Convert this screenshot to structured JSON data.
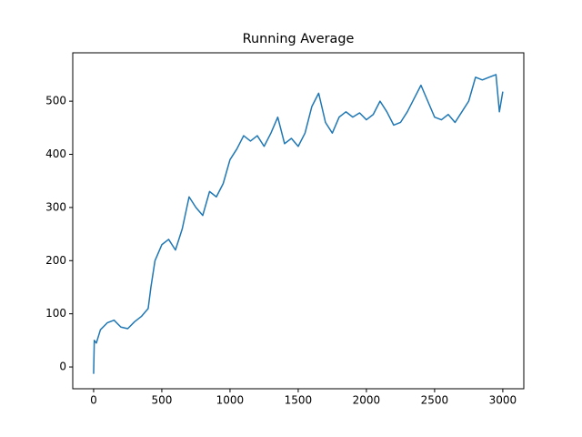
{
  "chart_data": {
    "type": "line",
    "title": "Running Average",
    "x": [
      0,
      5,
      20,
      50,
      100,
      150,
      200,
      250,
      300,
      350,
      400,
      420,
      450,
      500,
      550,
      600,
      650,
      700,
      750,
      800,
      850,
      900,
      950,
      1000,
      1050,
      1100,
      1150,
      1200,
      1250,
      1300,
      1350,
      1400,
      1450,
      1500,
      1550,
      1600,
      1650,
      1700,
      1750,
      1800,
      1850,
      1900,
      1950,
      2000,
      2050,
      2100,
      2150,
      2200,
      2250,
      2300,
      2350,
      2400,
      2450,
      2500,
      2550,
      2600,
      2650,
      2700,
      2750,
      2800,
      2850,
      2900,
      2950,
      2975,
      3000
    ],
    "series": [
      {
        "name": "Running Average",
        "color": "#1f77b4",
        "values": [
          -13,
          50,
          45,
          70,
          83,
          88,
          75,
          72,
          85,
          95,
          110,
          150,
          200,
          230,
          240,
          220,
          260,
          320,
          300,
          285,
          330,
          320,
          345,
          390,
          410,
          435,
          425,
          435,
          415,
          440,
          470,
          420,
          430,
          415,
          440,
          490,
          515,
          460,
          440,
          470,
          480,
          470,
          478,
          465,
          475,
          500,
          480,
          455,
          460,
          480,
          505,
          530,
          500,
          470,
          465,
          475,
          460,
          480,
          500,
          545,
          540,
          545,
          550,
          480,
          518
        ]
      }
    ],
    "xlim": [
      -153,
      3154
    ],
    "ylim": [
      -41,
      591
    ],
    "xticks": [
      0,
      500,
      1000,
      1500,
      2000,
      2500,
      3000
    ],
    "yticks": [
      0,
      100,
      200,
      300,
      400,
      500
    ]
  }
}
